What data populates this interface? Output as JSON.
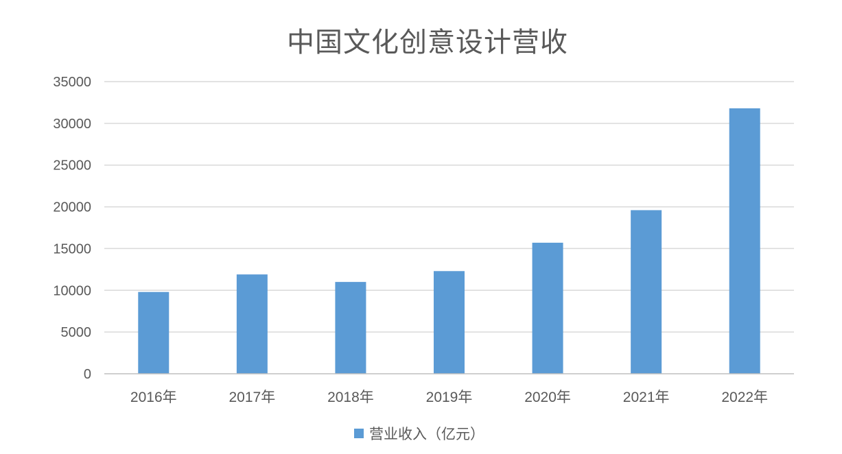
{
  "chart_data": {
    "type": "bar",
    "title": "中国文化创意设计营收",
    "xlabel": "",
    "ylabel": "",
    "categories": [
      "2016年",
      "2017年",
      "2018年",
      "2019年",
      "2020年",
      "2021年",
      "2022年"
    ],
    "series": [
      {
        "name": "营业收入（亿元）",
        "color": "#5b9bd5",
        "values": [
          9800,
          11900,
          11000,
          12300,
          15700,
          19600,
          31800
        ]
      }
    ],
    "ylim": [
      0,
      35000
    ],
    "yticks": [
      "0",
      "5000",
      "10000",
      "15000",
      "20000",
      "25000",
      "30000",
      "35000"
    ],
    "grid": true,
    "legend": "bottom"
  }
}
